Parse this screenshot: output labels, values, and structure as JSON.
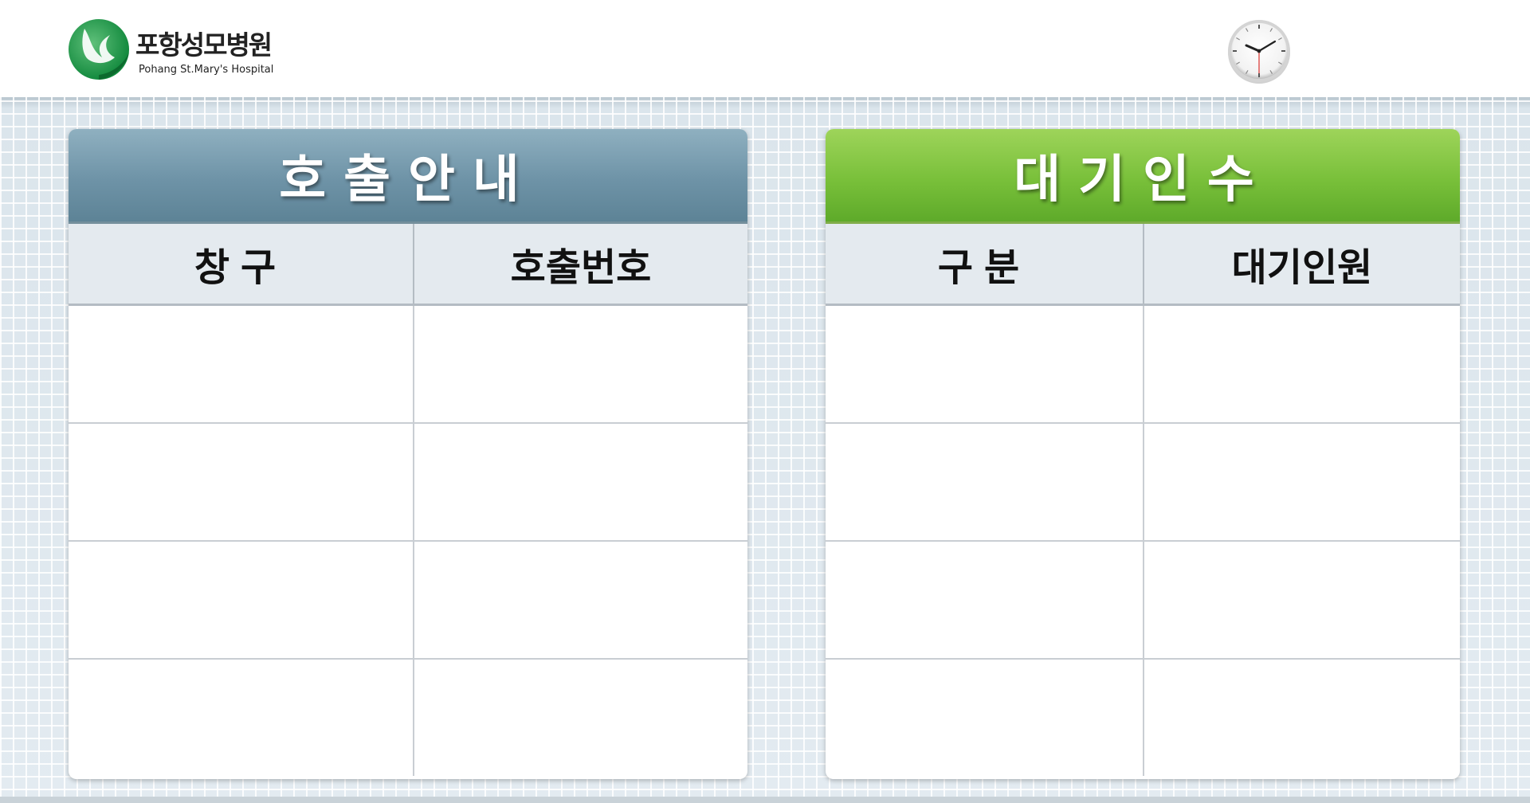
{
  "header": {
    "logo_name": "포항성모병원",
    "logo_sub": "Pohang St.Mary's Hospital",
    "logo_icon": "dove-leaf-logo-icon",
    "clock_icon": "analog-clock-icon"
  },
  "colors": {
    "call_panel_title": "#6e93a7",
    "wait_panel_title": "#79c03a",
    "header_cell": "#e4eaef"
  },
  "call_panel": {
    "title": "호출안내",
    "columns": [
      "창구",
      "호출번호"
    ],
    "rows": [
      [
        "",
        ""
      ],
      [
        "",
        ""
      ],
      [
        "",
        ""
      ],
      [
        "",
        ""
      ]
    ]
  },
  "wait_panel": {
    "title": "대기인수",
    "columns": [
      "구분",
      "대기인원"
    ],
    "rows": [
      [
        "",
        ""
      ],
      [
        "",
        ""
      ],
      [
        "",
        ""
      ],
      [
        "",
        ""
      ]
    ]
  }
}
